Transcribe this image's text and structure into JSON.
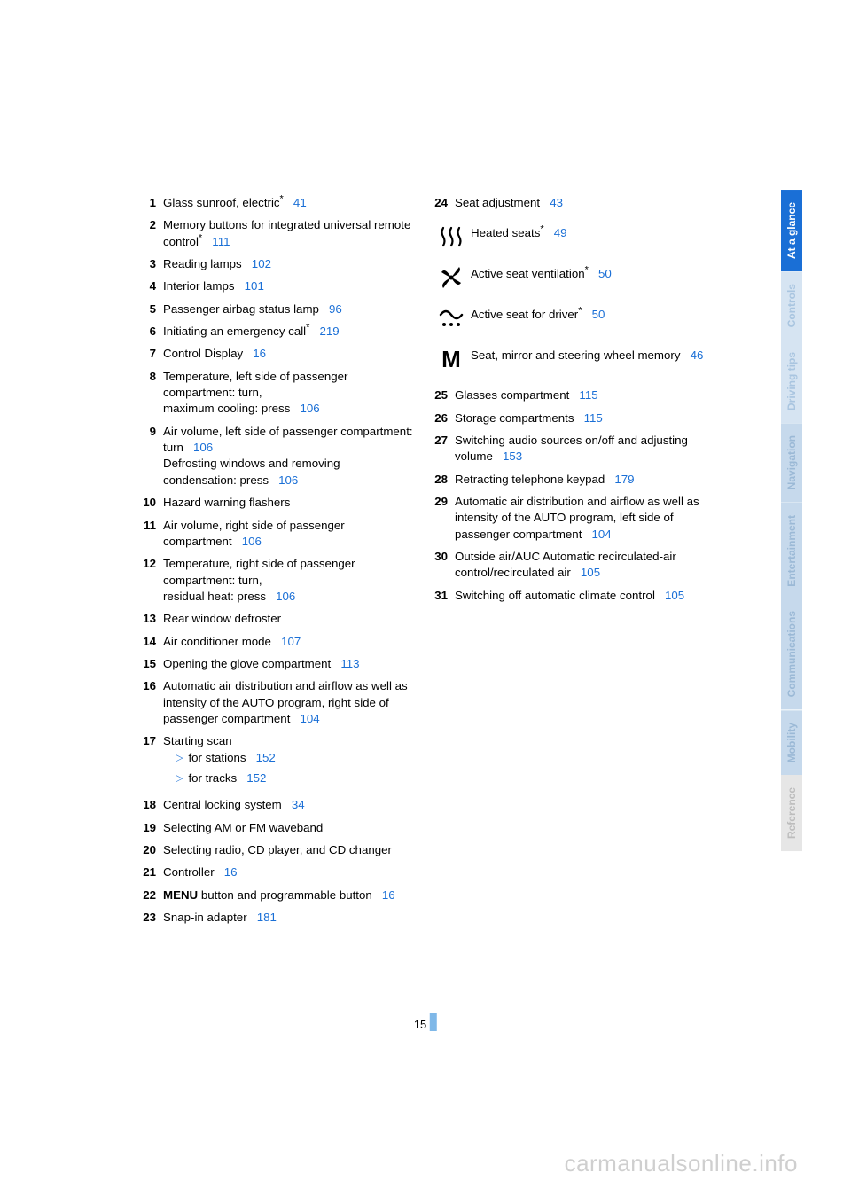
{
  "colors": {
    "link": "#1a6fd6",
    "text": "#000000",
    "watermark": "#cfcfcf",
    "pagebar": "#7fb8e8"
  },
  "page_number": "15",
  "watermark": "carmanualsonline.info",
  "left_items": [
    {
      "n": "1",
      "parts": [
        {
          "t": "Glass sunroof, electric"
        },
        {
          "ast": true
        },
        {
          "sp": true
        },
        {
          "t": "41",
          "ref": true
        }
      ]
    },
    {
      "n": "2",
      "parts": [
        {
          "t": "Memory buttons for integrated universal remote control"
        },
        {
          "ast": true
        },
        {
          "sp": true
        },
        {
          "t": "111",
          "ref": true
        }
      ]
    },
    {
      "n": "3",
      "parts": [
        {
          "t": "Reading lamps"
        },
        {
          "sp": true
        },
        {
          "t": "102",
          "ref": true
        }
      ]
    },
    {
      "n": "4",
      "parts": [
        {
          "t": "Interior lamps"
        },
        {
          "sp": true
        },
        {
          "t": "101",
          "ref": true
        }
      ]
    },
    {
      "n": "5",
      "parts": [
        {
          "t": "Passenger airbag status lamp"
        },
        {
          "sp": true
        },
        {
          "t": "96",
          "ref": true
        }
      ]
    },
    {
      "n": "6",
      "parts": [
        {
          "t": "Initiating an emergency call"
        },
        {
          "ast": true
        },
        {
          "sp": true
        },
        {
          "t": "219",
          "ref": true
        }
      ]
    },
    {
      "n": "7",
      "parts": [
        {
          "t": "Control Display"
        },
        {
          "sp": true
        },
        {
          "t": "16",
          "ref": true
        }
      ]
    },
    {
      "n": "8",
      "parts": [
        {
          "t": "Temperature, left side of passenger compartment: turn,"
        },
        {
          "br": true
        },
        {
          "t": "maximum cooling: press"
        },
        {
          "sp": true
        },
        {
          "t": "106",
          "ref": true
        }
      ]
    },
    {
      "n": "9",
      "parts": [
        {
          "t": "Air volume, left side of passenger compartment: turn"
        },
        {
          "sp": true
        },
        {
          "t": "106",
          "ref": true
        },
        {
          "br": true
        },
        {
          "t": "Defrosting windows and removing condensation: press"
        },
        {
          "sp": true
        },
        {
          "t": "106",
          "ref": true
        }
      ]
    },
    {
      "n": "10",
      "parts": [
        {
          "t": "Hazard warning flashers"
        }
      ]
    },
    {
      "n": "11",
      "parts": [
        {
          "t": "Air volume, right side of passenger compartment"
        },
        {
          "sp": true
        },
        {
          "t": "106",
          "ref": true
        }
      ]
    },
    {
      "n": "12",
      "parts": [
        {
          "t": "Temperature, right side of passenger compartment: turn,"
        },
        {
          "br": true
        },
        {
          "t": "residual heat: press"
        },
        {
          "sp": true
        },
        {
          "t": "106",
          "ref": true
        }
      ]
    },
    {
      "n": "13",
      "parts": [
        {
          "t": "Rear window defroster"
        }
      ]
    },
    {
      "n": "14",
      "parts": [
        {
          "t": "Air conditioner mode"
        },
        {
          "sp": true
        },
        {
          "t": "107",
          "ref": true
        }
      ]
    },
    {
      "n": "15",
      "parts": [
        {
          "t": "Opening the glove compartment"
        },
        {
          "sp": true
        },
        {
          "t": "113",
          "ref": true
        }
      ]
    },
    {
      "n": "16",
      "parts": [
        {
          "t": "Automatic air distribution and airflow as well as intensity of the AUTO program, right side of passenger compartment"
        },
        {
          "sp": true
        },
        {
          "t": "104",
          "ref": true
        }
      ]
    },
    {
      "n": "17",
      "parts": [
        {
          "t": "Starting scan"
        }
      ],
      "subs": [
        {
          "parts": [
            {
              "t": "for stations"
            },
            {
              "sp": true
            },
            {
              "t": "152",
              "ref": true
            }
          ]
        },
        {
          "parts": [
            {
              "t": "for tracks"
            },
            {
              "sp": true
            },
            {
              "t": "152",
              "ref": true
            }
          ]
        }
      ]
    },
    {
      "n": "18",
      "parts": [
        {
          "t": "Central locking system"
        },
        {
          "sp": true
        },
        {
          "t": "34",
          "ref": true
        }
      ]
    },
    {
      "n": "19",
      "parts": [
        {
          "t": "Selecting AM or FM waveband"
        }
      ]
    },
    {
      "n": "20",
      "parts": [
        {
          "t": "Selecting radio, CD player, and CD changer"
        }
      ]
    },
    {
      "n": "21",
      "parts": [
        {
          "t": "Controller"
        },
        {
          "sp": true
        },
        {
          "t": "16",
          "ref": true
        }
      ]
    },
    {
      "n": "22",
      "parts": [
        {
          "t": "MENU",
          "bold": true
        },
        {
          "t": " button and programmable button"
        },
        {
          "sp": true
        },
        {
          "t": "16",
          "ref": true
        }
      ]
    },
    {
      "n": "23",
      "parts": [
        {
          "t": "Snap-in adapter"
        },
        {
          "sp": true
        },
        {
          "t": "181",
          "ref": true
        }
      ]
    }
  ],
  "right_top": [
    {
      "n": "24",
      "parts": [
        {
          "t": "Seat adjustment"
        },
        {
          "sp": true
        },
        {
          "t": "43",
          "ref": true
        }
      ]
    }
  ],
  "icon_rows": [
    {
      "icon": "heat",
      "parts": [
        {
          "t": "Heated seats"
        },
        {
          "ast": true
        },
        {
          "sp": true
        },
        {
          "t": "49",
          "ref": true
        }
      ]
    },
    {
      "icon": "fan",
      "parts": [
        {
          "t": "Active seat ventilation"
        },
        {
          "ast": true
        },
        {
          "sp": true
        },
        {
          "t": "50",
          "ref": true
        }
      ]
    },
    {
      "icon": "wave",
      "parts": [
        {
          "t": "Active seat for driver"
        },
        {
          "ast": true
        },
        {
          "sp": true
        },
        {
          "t": "50",
          "ref": true
        }
      ]
    },
    {
      "icon": "M",
      "parts": [
        {
          "t": "Seat, mirror and steering wheel memory"
        },
        {
          "sp": true
        },
        {
          "t": "46",
          "ref": true
        }
      ]
    }
  ],
  "right_items": [
    {
      "n": "25",
      "parts": [
        {
          "t": "Glasses compartment"
        },
        {
          "sp": true
        },
        {
          "t": "115",
          "ref": true
        }
      ]
    },
    {
      "n": "26",
      "parts": [
        {
          "t": "Storage compartments"
        },
        {
          "sp": true
        },
        {
          "t": "115",
          "ref": true
        }
      ]
    },
    {
      "n": "27",
      "parts": [
        {
          "t": "Switching audio sources on/off and adjusting volume"
        },
        {
          "sp": true
        },
        {
          "t": "153",
          "ref": true
        }
      ]
    },
    {
      "n": "28",
      "parts": [
        {
          "t": "Retracting telephone keypad"
        },
        {
          "sp": true
        },
        {
          "t": "179",
          "ref": true
        }
      ]
    },
    {
      "n": "29",
      "parts": [
        {
          "t": "Automatic air distribution and airflow as well as intensity of the AUTO program, left side of passenger compartment"
        },
        {
          "sp": true
        },
        {
          "t": "104",
          "ref": true
        }
      ]
    },
    {
      "n": "30",
      "parts": [
        {
          "t": "Outside air/AUC Automatic recirculated-air control/recirculated air"
        },
        {
          "sp": true
        },
        {
          "t": "105",
          "ref": true
        }
      ]
    },
    {
      "n": "31",
      "parts": [
        {
          "t": "Switching off automatic climate control"
        },
        {
          "sp": true
        },
        {
          "t": "105",
          "ref": true
        }
      ]
    }
  ],
  "tabs": [
    {
      "label": "At a glance",
      "bg": "#1a6fd6",
      "fg": "#ffffff"
    },
    {
      "label": "Controls",
      "bg": "#d6e4f2",
      "fg": "#a9c5e0"
    },
    {
      "label": "Driving tips",
      "bg": "#d6e4f2",
      "fg": "#a9c5e0"
    },
    {
      "label": "Navigation",
      "bg": "#c6d9ec",
      "fg": "#9bb9d6"
    },
    {
      "label": "Entertainment",
      "bg": "#c6d9ec",
      "fg": "#9bb9d6"
    },
    {
      "label": "Communications",
      "bg": "#c6d9ec",
      "fg": "#9bb9d6"
    },
    {
      "label": "Mobility",
      "bg": "#c6d9ec",
      "fg": "#9bb9d6"
    },
    {
      "label": "Reference",
      "bg": "#e6e6e6",
      "fg": "#bcbcbc"
    }
  ]
}
